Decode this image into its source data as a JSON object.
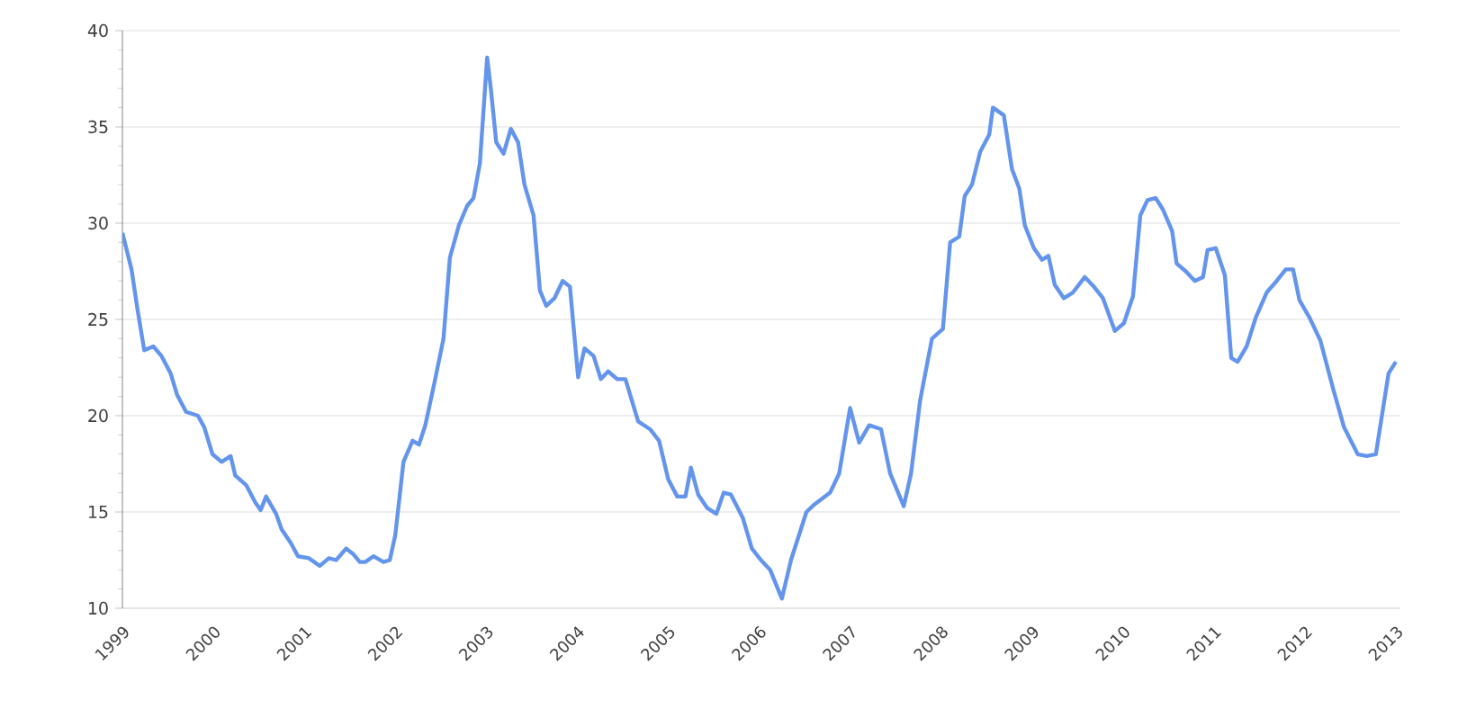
{
  "chart_data": {
    "type": "line",
    "grid": "y",
    "xlim": [
      1999,
      2013.05
    ],
    "ylim": [
      10,
      40
    ],
    "xticks": [
      1999,
      2000,
      2001,
      2002,
      2003,
      2004,
      2005,
      2006,
      2007,
      2008,
      2009,
      2010,
      2011,
      2012,
      2013
    ],
    "yticks": [
      10,
      15,
      20,
      25,
      30,
      35,
      40
    ],
    "series": [
      {
        "color": "#6495ed",
        "x": [
          1999.0,
          1999.1,
          1999.17,
          1999.24,
          1999.34,
          1999.43,
          1999.53,
          1999.6,
          1999.7,
          1999.83,
          1999.9,
          1999.99,
          2000.09,
          2000.19,
          2000.24,
          2000.36,
          2000.46,
          2000.52,
          2000.58,
          2000.69,
          2000.75,
          2000.85,
          2000.93,
          2001.05,
          2001.17,
          2001.27,
          2001.35,
          2001.46,
          2001.54,
          2001.61,
          2001.67,
          2001.76,
          2001.87,
          2001.94,
          2002.0,
          2002.09,
          2002.19,
          2002.26,
          2002.33,
          2002.43,
          2002.53,
          2002.6,
          2002.7,
          2002.79,
          2002.86,
          2002.93,
          2003.01,
          2003.05,
          2003.11,
          2003.19,
          2003.27,
          2003.35,
          2003.42,
          2003.52,
          2003.59,
          2003.66,
          2003.75,
          2003.84,
          2003.92,
          2004.01,
          2004.08,
          2004.18,
          2004.26,
          2004.34,
          2004.44,
          2004.53,
          2004.67,
          2004.8,
          2004.9,
          2005.0,
          2005.1,
          2005.19,
          2005.25,
          2005.33,
          2005.43,
          2005.53,
          2005.61,
          2005.69,
          2005.82,
          2005.92,
          2006.02,
          2006.12,
          2006.25,
          2006.35,
          2006.52,
          2006.61,
          2006.78,
          2006.88,
          2007.0,
          2007.1,
          2007.21,
          2007.34,
          2007.44,
          2007.59,
          2007.67,
          2007.77,
          2007.9,
          2008.02,
          2008.1,
          2008.2,
          2008.26,
          2008.34,
          2008.43,
          2008.53,
          2008.57,
          2008.69,
          2008.78,
          2008.86,
          2008.92,
          2009.02,
          2009.11,
          2009.18,
          2009.25,
          2009.35,
          2009.45,
          2009.58,
          2009.68,
          2009.78,
          2009.91,
          2010.01,
          2010.11,
          2010.19,
          2010.27,
          2010.36,
          2010.44,
          2010.54,
          2010.59,
          2010.69,
          2010.79,
          2010.88,
          2010.93,
          2011.02,
          2011.12,
          2011.19,
          2011.26,
          2011.36,
          2011.46,
          2011.58,
          2011.69,
          2011.79,
          2011.87,
          2011.94,
          2012.05,
          2012.17,
          2012.31,
          2012.43,
          2012.58,
          2012.68,
          2012.78,
          2012.92,
          2013.0
        ],
        "values": [
          29.5,
          27.6,
          25.4,
          23.4,
          23.6,
          23.1,
          22.2,
          21.1,
          20.2,
          20.0,
          19.4,
          18.0,
          17.6,
          17.9,
          16.9,
          16.4,
          15.5,
          15.1,
          15.8,
          14.9,
          14.1,
          13.4,
          12.7,
          12.6,
          12.2,
          12.6,
          12.5,
          13.1,
          12.8,
          12.4,
          12.4,
          12.7,
          12.4,
          12.5,
          13.8,
          17.6,
          18.7,
          18.5,
          19.5,
          21.7,
          24.0,
          28.2,
          29.9,
          30.9,
          31.3,
          33.1,
          38.6,
          37.0,
          34.2,
          33.6,
          34.9,
          34.2,
          32.0,
          30.4,
          26.5,
          25.7,
          26.1,
          27.0,
          26.7,
          22.0,
          23.5,
          23.1,
          21.9,
          22.3,
          21.9,
          21.9,
          19.7,
          19.3,
          18.7,
          16.7,
          15.8,
          15.8,
          17.3,
          15.9,
          15.2,
          14.9,
          16.0,
          15.9,
          14.7,
          13.1,
          12.5,
          12.0,
          10.5,
          12.5,
          15.0,
          15.4,
          16.0,
          17.0,
          20.4,
          18.6,
          19.5,
          19.3,
          17.0,
          15.3,
          17.0,
          20.8,
          24.0,
          24.5,
          29.0,
          29.3,
          31.4,
          32.0,
          33.7,
          34.6,
          36.0,
          35.6,
          32.8,
          31.8,
          29.9,
          28.7,
          28.1,
          28.3,
          26.8,
          26.1,
          26.4,
          27.2,
          26.7,
          26.1,
          24.4,
          24.8,
          26.2,
          30.4,
          31.2,
          31.3,
          30.7,
          29.6,
          27.9,
          27.5,
          27.0,
          27.2,
          28.6,
          28.7,
          27.3,
          23.0,
          22.8,
          23.6,
          25.1,
          26.4,
          27.0,
          27.6,
          27.6,
          26.0,
          25.1,
          23.9,
          21.4,
          19.4,
          18.0,
          17.9,
          18.0,
          22.2,
          22.8
        ]
      }
    ],
    "marker": "none",
    "line_style": "solid"
  }
}
